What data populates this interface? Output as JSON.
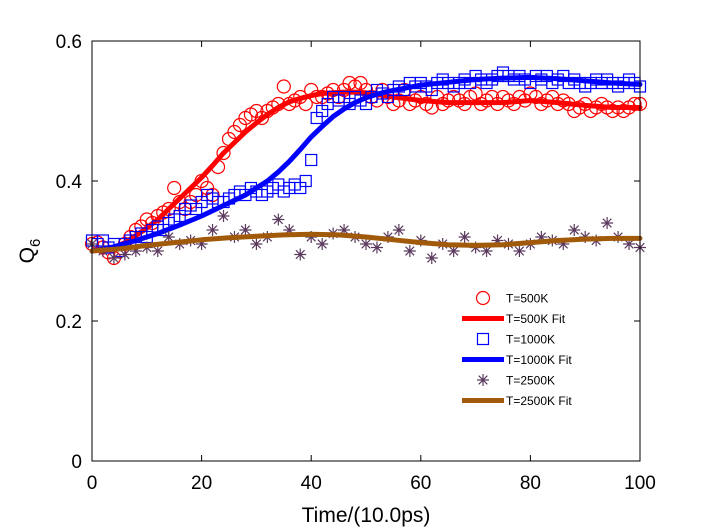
{
  "chart_data": {
    "type": "scatter",
    "title": "",
    "xlabel": "Time/(10.0ps)",
    "ylabel": {
      "base": "Q",
      "sub": "6"
    },
    "xlim": [
      0,
      100
    ],
    "ylim": [
      0,
      0.6
    ],
    "xticks": [
      0,
      20,
      40,
      60,
      80,
      100
    ],
    "yticks": [
      0,
      0.2,
      0.4,
      0.6
    ],
    "xtick_labels": [
      "0",
      "20",
      "40",
      "60",
      "80",
      "100"
    ],
    "ytick_labels": [
      "0",
      "0.2",
      "0.4",
      "0.6"
    ],
    "grid": false,
    "legend_position": "lower-right",
    "series": [
      {
        "name": "T=500K",
        "kind": "markers",
        "marker": "circle",
        "color": "#ff0000",
        "x": [
          0,
          1,
          2,
          3,
          4,
          5,
          6,
          7,
          8,
          9,
          10,
          11,
          12,
          13,
          14,
          15,
          16,
          17,
          18,
          19,
          20,
          21,
          22,
          23,
          24,
          25,
          26,
          27,
          28,
          29,
          30,
          31,
          32,
          33,
          34,
          35,
          36,
          37,
          38,
          39,
          40,
          41,
          42,
          43,
          44,
          45,
          46,
          47,
          48,
          49,
          50,
          51,
          52,
          53,
          54,
          55,
          56,
          57,
          58,
          59,
          60,
          61,
          62,
          63,
          64,
          65,
          66,
          67,
          68,
          69,
          70,
          71,
          72,
          73,
          74,
          75,
          76,
          77,
          78,
          79,
          80,
          81,
          82,
          83,
          84,
          85,
          86,
          87,
          88,
          89,
          90,
          91,
          92,
          93,
          94,
          95,
          96,
          97,
          98,
          99,
          100
        ],
        "y": [
          0.31,
          0.312,
          0.305,
          0.298,
          0.29,
          0.3,
          0.31,
          0.32,
          0.33,
          0.335,
          0.345,
          0.34,
          0.35,
          0.355,
          0.36,
          0.39,
          0.37,
          0.36,
          0.37,
          0.38,
          0.4,
          0.39,
          0.38,
          0.42,
          0.44,
          0.46,
          0.47,
          0.48,
          0.49,
          0.495,
          0.5,
          0.49,
          0.5,
          0.505,
          0.51,
          0.535,
          0.51,
          0.515,
          0.52,
          0.51,
          0.53,
          0.52,
          0.52,
          0.525,
          0.53,
          0.52,
          0.53,
          0.54,
          0.535,
          0.54,
          0.53,
          0.52,
          0.515,
          0.53,
          0.52,
          0.51,
          0.515,
          0.53,
          0.51,
          0.515,
          0.52,
          0.51,
          0.505,
          0.52,
          0.51,
          0.515,
          0.52,
          0.515,
          0.51,
          0.52,
          0.525,
          0.51,
          0.515,
          0.52,
          0.51,
          0.52,
          0.515,
          0.51,
          0.52,
          0.515,
          0.525,
          0.52,
          0.51,
          0.515,
          0.52,
          0.51,
          0.515,
          0.51,
          0.5,
          0.505,
          0.51,
          0.5,
          0.505,
          0.51,
          0.505,
          0.5,
          0.505,
          0.5,
          0.505,
          0.51,
          0.51
        ]
      },
      {
        "name": "T=500K   Fit",
        "kind": "line",
        "color": "#ff0000",
        "x": [
          0,
          2,
          4,
          6,
          8,
          10,
          12,
          14,
          16,
          18,
          20,
          22,
          24,
          26,
          28,
          30,
          32,
          34,
          36,
          38,
          40,
          42,
          44,
          46,
          48,
          50,
          55,
          60,
          65,
          70,
          75,
          80,
          85,
          90,
          95,
          100
        ],
        "y": [
          0.3,
          0.302,
          0.305,
          0.312,
          0.322,
          0.333,
          0.345,
          0.36,
          0.375,
          0.39,
          0.405,
          0.422,
          0.44,
          0.455,
          0.47,
          0.483,
          0.495,
          0.505,
          0.513,
          0.518,
          0.522,
          0.525,
          0.526,
          0.527,
          0.527,
          0.526,
          0.52,
          0.515,
          0.512,
          0.512,
          0.512,
          0.515,
          0.512,
          0.508,
          0.505,
          0.505
        ]
      },
      {
        "name": "T=1000K",
        "kind": "markers",
        "marker": "square",
        "color": "#0000ff",
        "x": [
          0,
          1,
          2,
          3,
          4,
          5,
          6,
          7,
          8,
          9,
          10,
          11,
          12,
          13,
          14,
          15,
          16,
          17,
          18,
          19,
          20,
          21,
          22,
          23,
          24,
          25,
          26,
          27,
          28,
          29,
          30,
          31,
          32,
          33,
          34,
          35,
          36,
          37,
          38,
          39,
          40,
          41,
          42,
          43,
          44,
          45,
          46,
          47,
          48,
          49,
          50,
          51,
          52,
          53,
          54,
          55,
          56,
          57,
          58,
          59,
          60,
          61,
          62,
          63,
          64,
          65,
          66,
          67,
          68,
          69,
          70,
          71,
          72,
          73,
          74,
          75,
          76,
          77,
          78,
          79,
          80,
          81,
          82,
          83,
          84,
          85,
          86,
          87,
          88,
          89,
          90,
          91,
          92,
          93,
          94,
          95,
          96,
          97,
          98,
          99,
          100
        ],
        "y": [
          0.315,
          0.31,
          0.315,
          0.305,
          0.31,
          0.3,
          0.31,
          0.315,
          0.32,
          0.325,
          0.32,
          0.33,
          0.335,
          0.33,
          0.34,
          0.345,
          0.35,
          0.36,
          0.365,
          0.36,
          0.37,
          0.38,
          0.375,
          0.37,
          0.37,
          0.375,
          0.38,
          0.385,
          0.38,
          0.39,
          0.385,
          0.38,
          0.385,
          0.39,
          0.395,
          0.385,
          0.39,
          0.395,
          0.39,
          0.4,
          0.43,
          0.49,
          0.5,
          0.51,
          0.52,
          0.515,
          0.52,
          0.51,
          0.52,
          0.515,
          0.51,
          0.52,
          0.53,
          0.525,
          0.52,
          0.53,
          0.535,
          0.53,
          0.54,
          0.535,
          0.54,
          0.535,
          0.53,
          0.54,
          0.545,
          0.54,
          0.535,
          0.54,
          0.545,
          0.54,
          0.55,
          0.545,
          0.54,
          0.545,
          0.55,
          0.555,
          0.55,
          0.545,
          0.55,
          0.545,
          0.54,
          0.55,
          0.545,
          0.55,
          0.54,
          0.545,
          0.55,
          0.54,
          0.545,
          0.54,
          0.535,
          0.54,
          0.545,
          0.54,
          0.545,
          0.54,
          0.535,
          0.54,
          0.545,
          0.54,
          0.535
        ]
      },
      {
        "name": "T=1000K Fit",
        "kind": "line",
        "color": "#0000ff",
        "x": [
          0,
          4,
          8,
          12,
          16,
          20,
          24,
          28,
          30,
          32,
          34,
          36,
          38,
          40,
          42,
          44,
          46,
          48,
          50,
          52,
          54,
          56,
          58,
          60,
          65,
          70,
          75,
          80,
          85,
          90,
          95,
          100
        ],
        "y": [
          0.3,
          0.306,
          0.315,
          0.325,
          0.337,
          0.35,
          0.365,
          0.38,
          0.39,
          0.4,
          0.413,
          0.428,
          0.445,
          0.463,
          0.478,
          0.492,
          0.503,
          0.512,
          0.519,
          0.524,
          0.528,
          0.531,
          0.534,
          0.537,
          0.541,
          0.545,
          0.547,
          0.548,
          0.546,
          0.543,
          0.54,
          0.538
        ]
      },
      {
        "name": "T=2500K",
        "kind": "markers",
        "marker": "asterisk",
        "color": "#5b3a5e",
        "x": [
          0,
          2,
          4,
          6,
          8,
          10,
          12,
          14,
          16,
          18,
          20,
          22,
          24,
          26,
          28,
          30,
          32,
          34,
          36,
          38,
          40,
          42,
          44,
          46,
          48,
          50,
          52,
          54,
          56,
          58,
          60,
          62,
          64,
          66,
          68,
          70,
          72,
          74,
          76,
          78,
          80,
          82,
          84,
          86,
          88,
          90,
          92,
          94,
          96,
          98,
          100
        ],
        "y": [
          0.31,
          0.3,
          0.29,
          0.295,
          0.3,
          0.305,
          0.3,
          0.32,
          0.31,
          0.315,
          0.31,
          0.33,
          0.35,
          0.32,
          0.33,
          0.31,
          0.32,
          0.345,
          0.33,
          0.295,
          0.32,
          0.31,
          0.325,
          0.33,
          0.32,
          0.31,
          0.305,
          0.32,
          0.33,
          0.3,
          0.315,
          0.29,
          0.31,
          0.3,
          0.32,
          0.305,
          0.3,
          0.315,
          0.31,
          0.3,
          0.31,
          0.32,
          0.315,
          0.31,
          0.33,
          0.32,
          0.315,
          0.34,
          0.32,
          0.31,
          0.305
        ]
      },
      {
        "name": "T=2500K Fit",
        "kind": "line",
        "color": "#a05a0a",
        "x": [
          0,
          5,
          10,
          15,
          20,
          25,
          30,
          35,
          40,
          45,
          50,
          55,
          60,
          65,
          70,
          75,
          80,
          85,
          90,
          95,
          100
        ],
        "y": [
          0.3,
          0.303,
          0.308,
          0.312,
          0.316,
          0.319,
          0.321,
          0.323,
          0.324,
          0.323,
          0.32,
          0.316,
          0.312,
          0.309,
          0.308,
          0.309,
          0.312,
          0.315,
          0.317,
          0.318,
          0.318
        ]
      }
    ]
  }
}
